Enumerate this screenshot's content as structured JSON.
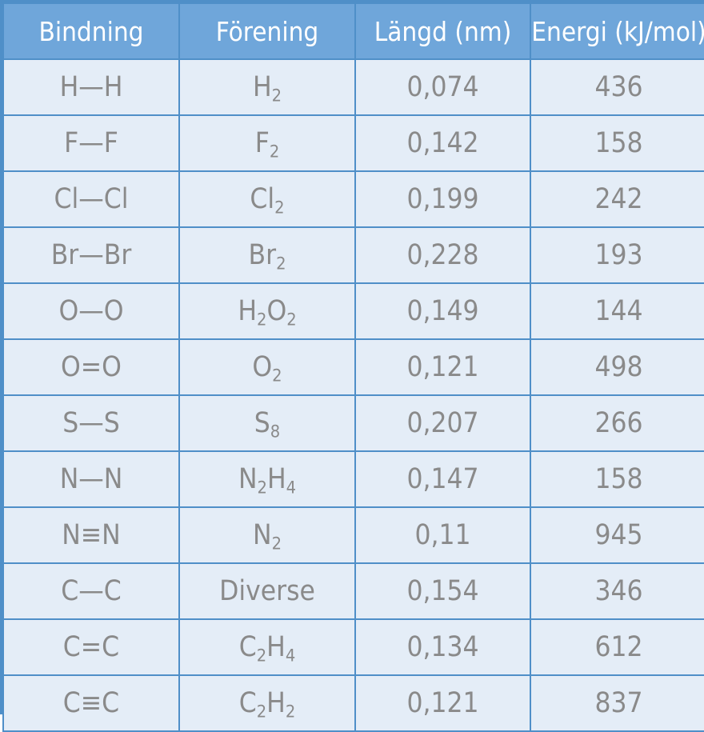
{
  "table": {
    "headers": [
      "Bindning",
      "Förening",
      "Längd (nm)",
      "Energi (kJ/mol)"
    ],
    "rows": [
      {
        "bond": "H—H",
        "compound": [
          [
            "H",
            ""
          ],
          [
            "",
            "2"
          ]
        ],
        "length": "0,074",
        "energy": "436"
      },
      {
        "bond": "F—F",
        "compound": [
          [
            "F",
            ""
          ],
          [
            "",
            "2"
          ]
        ],
        "length": "0,142",
        "energy": "158"
      },
      {
        "bond": "Cl—Cl",
        "compound": [
          [
            "Cl",
            ""
          ],
          [
            "",
            "2"
          ]
        ],
        "length": "0,199",
        "energy": "242"
      },
      {
        "bond": "Br—Br",
        "compound": [
          [
            "Br",
            ""
          ],
          [
            "",
            "2"
          ]
        ],
        "length": "0,228",
        "energy": "193"
      },
      {
        "bond": "O—O",
        "compound": [
          [
            "H",
            ""
          ],
          [
            "",
            "2"
          ],
          [
            "O",
            ""
          ],
          [
            "",
            "2"
          ]
        ],
        "length": "0,149",
        "energy": "144"
      },
      {
        "bond": "O=O",
        "compound": [
          [
            "O",
            ""
          ],
          [
            "",
            "2"
          ]
        ],
        "length": "0,121",
        "energy": "498"
      },
      {
        "bond": "S—S",
        "compound": [
          [
            "S",
            ""
          ],
          [
            "",
            "8"
          ]
        ],
        "length": "0,207",
        "energy": "266"
      },
      {
        "bond": "N—N",
        "compound": [
          [
            "N",
            ""
          ],
          [
            "",
            "2"
          ],
          [
            "H",
            ""
          ],
          [
            "",
            "4"
          ]
        ],
        "length": "0,147",
        "energy": "158"
      },
      {
        "bond": "N≡N",
        "compound": [
          [
            "N",
            ""
          ],
          [
            "",
            "2"
          ]
        ],
        "length": "0,11",
        "energy": "945"
      },
      {
        "bond": "C—C",
        "compound": [
          [
            "Diverse",
            ""
          ]
        ],
        "length": "0,154",
        "energy": "346"
      },
      {
        "bond": "C=C",
        "compound": [
          [
            "C",
            ""
          ],
          [
            "",
            "2"
          ],
          [
            "H",
            ""
          ],
          [
            "",
            "4"
          ]
        ],
        "length": "0,134",
        "energy": "612"
      },
      {
        "bond": "C≡C",
        "compound": [
          [
            "C",
            ""
          ],
          [
            "",
            "2"
          ],
          [
            "H",
            ""
          ],
          [
            "",
            "2"
          ]
        ],
        "length": "0,121",
        "energy": "837"
      }
    ]
  }
}
